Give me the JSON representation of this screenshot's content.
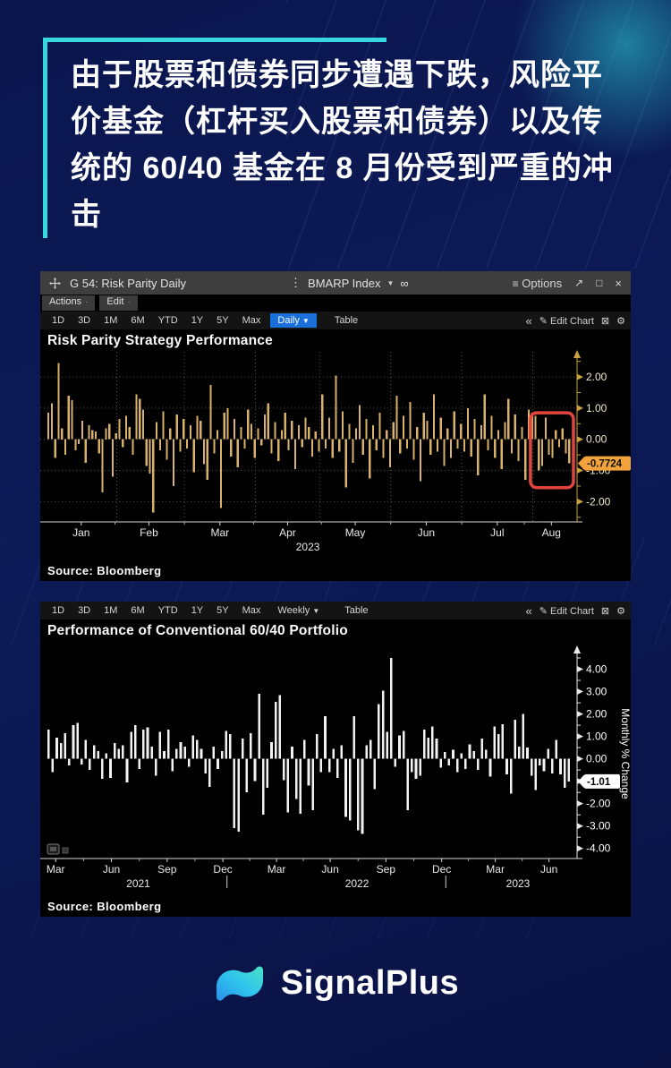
{
  "headline": {
    "lines": [
      "由于股票和债券同步遭遇下跌，风险平",
      "价基金（杠杆买入股票和债券）以及传",
      "统的 60/40 基金在 8 月份受到严重的冲",
      "击"
    ],
    "accent_color": "#36d8dd"
  },
  "chart1_window": {
    "titlebar": {
      "title": "G 54: Risk Parity Daily",
      "menu_icon": "⋮",
      "security": "BMARP Index",
      "dropdown_icon": "▼",
      "link_icon": "∞",
      "options_icon": "≡",
      "options_label": "Options",
      "popout_icon": "↗",
      "maximize_icon": "□",
      "close_icon": "×"
    },
    "menubar": {
      "actions_label": "Actions",
      "edit_label": "Edit",
      "dot": "·"
    },
    "toolbar": {
      "ranges": [
        "1D",
        "3D",
        "1M",
        "6M",
        "YTD",
        "1Y",
        "5Y",
        "Max"
      ],
      "period": "Daily",
      "period_dropdown_icon": "▼",
      "period_highlighted": true,
      "table_label": "Table",
      "collapse_icon": "«",
      "pencil_icon": "✎",
      "edit_chart_label": "Edit Chart",
      "export_icon": "⊠",
      "gear_icon": "⚙"
    },
    "source": "Source: Bloomberg"
  },
  "chart2_window": {
    "toolbar": {
      "ranges": [
        "1D",
        "3D",
        "1M",
        "6M",
        "YTD",
        "1Y",
        "5Y",
        "Max"
      ],
      "period": "Weekly",
      "period_dropdown_icon": "▼",
      "period_highlighted": false,
      "table_label": "Table",
      "collapse_icon": "«",
      "pencil_icon": "✎",
      "edit_chart_label": "Edit Chart",
      "export_icon": "⊠",
      "gear_icon": "⚙"
    },
    "source": "Source: Bloomberg"
  },
  "logo": {
    "text": "SignalPlus"
  },
  "chart_data": [
    {
      "type": "bar",
      "title": "Risk Parity Strategy Performance",
      "period": "daily",
      "ylim": [
        -2.65,
        2.75
      ],
      "yticks": [
        2,
        1,
        0,
        -1,
        -2
      ],
      "minor_tick_step": 0.5,
      "grid": true,
      "bar_color": "#d9b269",
      "axis_color": "#c9a23f",
      "tick_label_color": "#f3e9cf",
      "x_ticks": [
        {
          "label": "Jan",
          "idx": 10
        },
        {
          "label": "Feb",
          "idx": 30
        },
        {
          "label": "Mar",
          "idx": 51
        },
        {
          "label": "Apr",
          "idx": 71
        },
        {
          "label": "May",
          "idx": 91
        },
        {
          "label": "Jun",
          "idx": 112
        },
        {
          "label": "Jul",
          "idx": 133
        },
        {
          "label": "Aug",
          "idx": 149
        }
      ],
      "grid_x_idx": [
        20.5,
        40.5,
        61.5,
        80.5,
        101.5,
        122.5,
        143.5
      ],
      "year_labels": [
        {
          "text": "2023",
          "idx": 77
        }
      ],
      "last_value": -0.7724,
      "last_value_label": "-0.7724",
      "tag_bg": "#f2a33c",
      "tag_fg": "#111111",
      "highlight_box": {
        "from_idx": 143.6,
        "to_idx": 155,
        "top": 0.85,
        "bottom": -1.55,
        "color": "#e2453b"
      },
      "values": [
        0.85,
        1.15,
        -0.6,
        2.45,
        0.35,
        -0.5,
        1.4,
        1.25,
        -0.35,
        -0.15,
        0.6,
        -0.75,
        0.45,
        0.3,
        0.25,
        -0.45,
        -1.7,
        0.35,
        0.5,
        -1.2,
        0.2,
        0.65,
        -0.25,
        0.75,
        0.4,
        -0.5,
        1.45,
        1.3,
        0.95,
        -0.85,
        -1.1,
        -2.35,
        0.55,
        -0.35,
        0.9,
        -0.65,
        0.35,
        -1.5,
        0.8,
        -0.4,
        0.65,
        -0.3,
        0.45,
        -1.05,
        0.75,
        0.6,
        -0.8,
        -1.3,
        1.75,
        -0.45,
        0.3,
        -2.2,
        0.85,
        1.0,
        -0.55,
        0.65,
        -0.9,
        0.4,
        -0.3,
        0.95,
        0.5,
        -0.6,
        0.35,
        -0.2,
        0.8,
        1.15,
        -0.45,
        0.55,
        -0.7,
        0.3,
        0.85,
        -0.35,
        0.6,
        -0.95,
        0.45,
        -0.25,
        0.7,
        0.4,
        -0.55,
        0.25,
        -0.4,
        1.45,
        -0.3,
        0.7,
        -0.6,
        2.05,
        -0.4,
        0.9,
        -1.55,
        0.5,
        -0.75,
        0.35,
        1.1,
        -0.5,
        0.65,
        -1.25,
        0.45,
        -0.35,
        0.85,
        -0.6,
        0.3,
        -0.9,
        0.55,
        1.4,
        -0.45,
        0.75,
        -0.3,
        1.2,
        -0.65,
        0.4,
        -1.35,
        0.85,
        0.6,
        -0.5,
        1.45,
        -0.4,
        0.7,
        -0.85,
        0.35,
        -0.6,
        0.9,
        -0.3,
        0.5,
        -0.4,
        1.0,
        -0.55,
        0.65,
        -1.15,
        0.45,
        1.45,
        -0.35,
        0.75,
        -0.6,
        0.3,
        -0.95,
        0.55,
        1.3,
        -0.45,
        0.8,
        -0.7,
        0.4,
        -1.3,
        0.95,
        0.85,
        0.75,
        -1.0,
        -0.85,
        0.7,
        -0.5,
        -0.6,
        0.3,
        -0.25,
        0.35,
        -0.45,
        -0.7724
      ]
    },
    {
      "type": "bar",
      "title": "Performance of Conventional 60/40 Portfolio",
      "period": "weekly",
      "ylabel": "Monthly % Change",
      "ylim": [
        -4.45,
        4.9
      ],
      "yticks": [
        4,
        3,
        2,
        1,
        0,
        -1,
        -2,
        -3,
        -4
      ],
      "minor_tick_step": 0.5,
      "grid": false,
      "bar_color": "#f2f2f2",
      "axis_color": "#e8e8e8",
      "tick_label_color": "#ffffff",
      "x_ticks": [
        {
          "label": "Mar",
          "idx": 2
        },
        {
          "label": "Jun",
          "idx": 15.5
        },
        {
          "label": "Sep",
          "idx": 29
        },
        {
          "label": "Dec",
          "idx": 42.5
        },
        {
          "label": "Mar",
          "idx": 55.5
        },
        {
          "label": "Jun",
          "idx": 68.5
        },
        {
          "label": "Sep",
          "idx": 82
        },
        {
          "label": "Dec",
          "idx": 95.5
        },
        {
          "label": "Mar",
          "idx": 108.5
        },
        {
          "label": "Jun",
          "idx": 121.5
        }
      ],
      "year_labels": [
        {
          "text": "2021",
          "idx": 22
        },
        {
          "text": "2022",
          "idx": 75
        },
        {
          "text": "2023",
          "idx": 114
        }
      ],
      "year_sep_idx": [
        43.5,
        96.5
      ],
      "last_value": -1.01,
      "last_value_label": "-1.01",
      "tag_bg": "#ffffff",
      "tag_fg": "#000000",
      "legend_chip": true,
      "values": [
        1.3,
        -0.6,
        0.95,
        0.7,
        1.15,
        -0.3,
        1.5,
        1.6,
        -0.25,
        0.85,
        -0.5,
        0.6,
        0.35,
        -0.9,
        0.25,
        -0.85,
        0.7,
        0.45,
        0.6,
        -1.05,
        1.2,
        1.5,
        -0.45,
        1.3,
        1.4,
        0.55,
        -0.75,
        1.2,
        0.35,
        1.3,
        -0.55,
        0.45,
        0.75,
        0.55,
        -0.35,
        1.05,
        0.85,
        0.45,
        -0.65,
        -1.25,
        0.55,
        -0.45,
        0.35,
        1.25,
        1.1,
        -3.1,
        -3.25,
        0.9,
        -1.5,
        1.15,
        -1.0,
        2.9,
        -2.5,
        -1.3,
        0.75,
        2.55,
        2.85,
        -0.95,
        -2.4,
        0.55,
        -1.8,
        -2.45,
        0.85,
        -1.2,
        -2.3,
        1.1,
        -0.6,
        1.9,
        -0.6,
        0.45,
        -0.85,
        0.6,
        -2.6,
        -2.75,
        1.9,
        -3.2,
        -3.35,
        0.6,
        0.85,
        -1.35,
        2.45,
        3.05,
        1.2,
        4.5,
        -0.35,
        1.05,
        1.25,
        -2.3,
        -0.6,
        -0.9,
        -0.75,
        1.3,
        0.95,
        1.45,
        0.9,
        -0.4,
        0.3,
        -0.3,
        0.4,
        -0.6,
        0.25,
        -0.45,
        0.65,
        0.35,
        -0.5,
        0.9,
        0.4,
        -0.8,
        1.45,
        1.1,
        1.55,
        -0.7,
        -1.55,
        1.75,
        0.55,
        2.0,
        0.5,
        -0.75,
        -1.4,
        -0.3,
        -0.55,
        0.45,
        -0.65,
        0.85,
        -0.7,
        -1.3,
        -1.01
      ]
    }
  ]
}
